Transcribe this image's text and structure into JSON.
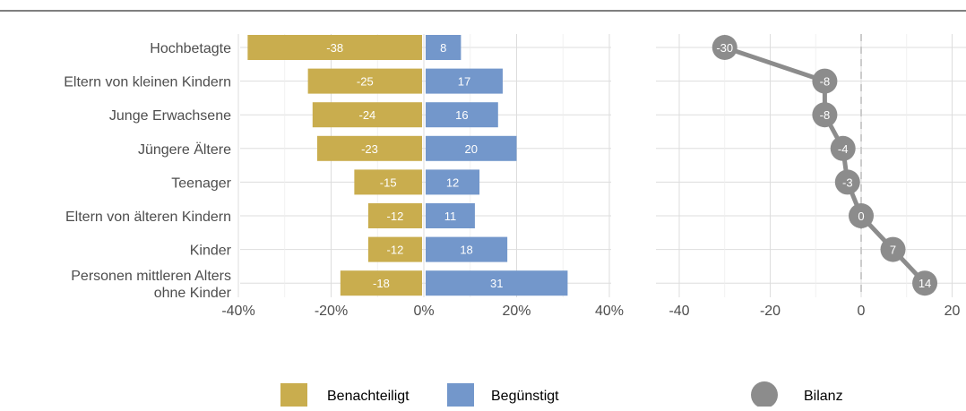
{
  "chart_data": [
    {
      "type": "bar",
      "orientation": "horizontal",
      "stacking": "diverging",
      "categories": [
        "Hochbetagte",
        "Eltern von kleinen Kindern",
        "Junge Erwachsene",
        "Jüngere Ältere",
        "Teenager",
        "Eltern von älteren Kindern",
        "Kinder",
        "Personen mittleren Alters\nohne Kinder"
      ],
      "series": [
        {
          "name": "Benachteiligt",
          "color": "#c9ad4e",
          "values": [
            -38,
            -25,
            -24,
            -23,
            -15,
            -12,
            -12,
            -18
          ]
        },
        {
          "name": "Begünstigt",
          "color": "#7397cb",
          "values": [
            8,
            17,
            16,
            20,
            12,
            11,
            18,
            31
          ]
        }
      ],
      "x_ticks": [
        "-40%",
        "-20%",
        "0%",
        "20%",
        "40%"
      ],
      "x_tick_values": [
        -40,
        -20,
        0,
        20,
        40
      ],
      "xlim": [
        -40,
        40
      ],
      "grid": true,
      "data_labels": true
    },
    {
      "type": "line",
      "marker": "circle",
      "series": [
        {
          "name": "Bilanz",
          "color": "#8c8c8c",
          "values": [
            -30,
            -8,
            -8,
            -4,
            -3,
            0,
            7,
            14
          ]
        }
      ],
      "x_ticks": [
        "-40",
        "-20",
        "0",
        "20"
      ],
      "x_tick_values": [
        -40,
        -20,
        0,
        20
      ],
      "xlim": [
        -40,
        20
      ],
      "reference_line": 0,
      "grid": true,
      "data_labels": true
    }
  ],
  "legend": {
    "placement": "bottom",
    "items": [
      {
        "label": "Benachteiligt",
        "color": "#c9ad4e",
        "shape": "square"
      },
      {
        "label": "Begünstigt",
        "color": "#7397cb",
        "shape": "square"
      },
      {
        "label": "Bilanz",
        "color": "#8c8c8c",
        "shape": "circle"
      }
    ]
  },
  "colors": {
    "grid": "#dddddd",
    "tick_text": "#4d4d4d",
    "top_rule": "#555555",
    "label_text": "#ffffff",
    "zero_line": "#cccccc"
  }
}
